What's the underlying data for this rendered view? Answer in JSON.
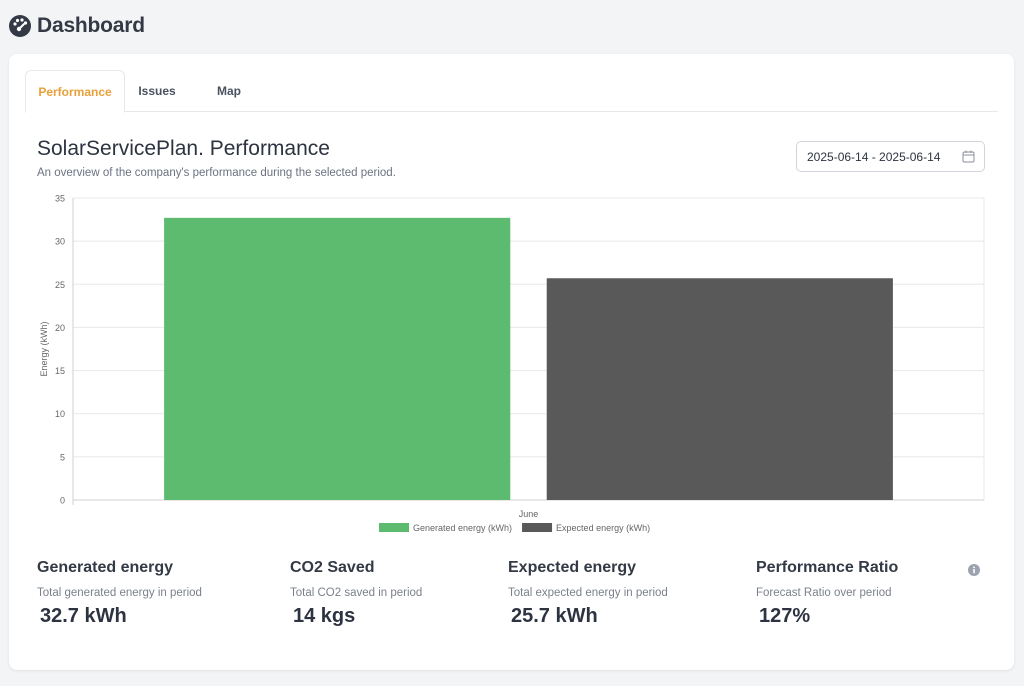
{
  "header": {
    "title": "Dashboard",
    "icon": "dashboard-gauge-icon"
  },
  "tabs": [
    {
      "label": "Performance",
      "active": true
    },
    {
      "label": "Issues",
      "active": false
    },
    {
      "label": "Map",
      "active": false
    }
  ],
  "section": {
    "title": "SolarServicePlan. Performance",
    "subtitle": "An overview of the company's performance during the selected period."
  },
  "date_range": {
    "value": "2025-06-14 - 2025-06-14",
    "icon": "calendar-icon"
  },
  "chart_data": {
    "type": "bar",
    "categories": [
      "June"
    ],
    "series": [
      {
        "name": "Generated energy (kWh)",
        "values": [
          32.7
        ],
        "color": "#5cbb6f"
      },
      {
        "name": "Expected energy (kWh)",
        "values": [
          25.7
        ],
        "color": "#595959"
      }
    ],
    "ylabel": "Energy (kWh)",
    "ylim": [
      0,
      35
    ],
    "yticks": [
      0,
      5,
      10,
      15,
      20,
      25,
      30,
      35
    ],
    "grid": true,
    "legend": "bottom"
  },
  "stats": [
    {
      "title": "Generated energy",
      "subtitle": "Total generated energy in period",
      "value": "32.7 kWh"
    },
    {
      "title": "CO2 Saved",
      "subtitle": "Total CO2 saved in period",
      "value": "14 kgs"
    },
    {
      "title": "Expected energy",
      "subtitle": "Total expected energy in period",
      "value": "25.7 kWh"
    },
    {
      "title": "Performance Ratio",
      "subtitle": "Forecast Ratio over period",
      "value": "127%",
      "icon": "info-icon"
    }
  ],
  "colors": {
    "accent": "#e8a13a",
    "generated": "#5cbb6f",
    "expected": "#595959"
  }
}
